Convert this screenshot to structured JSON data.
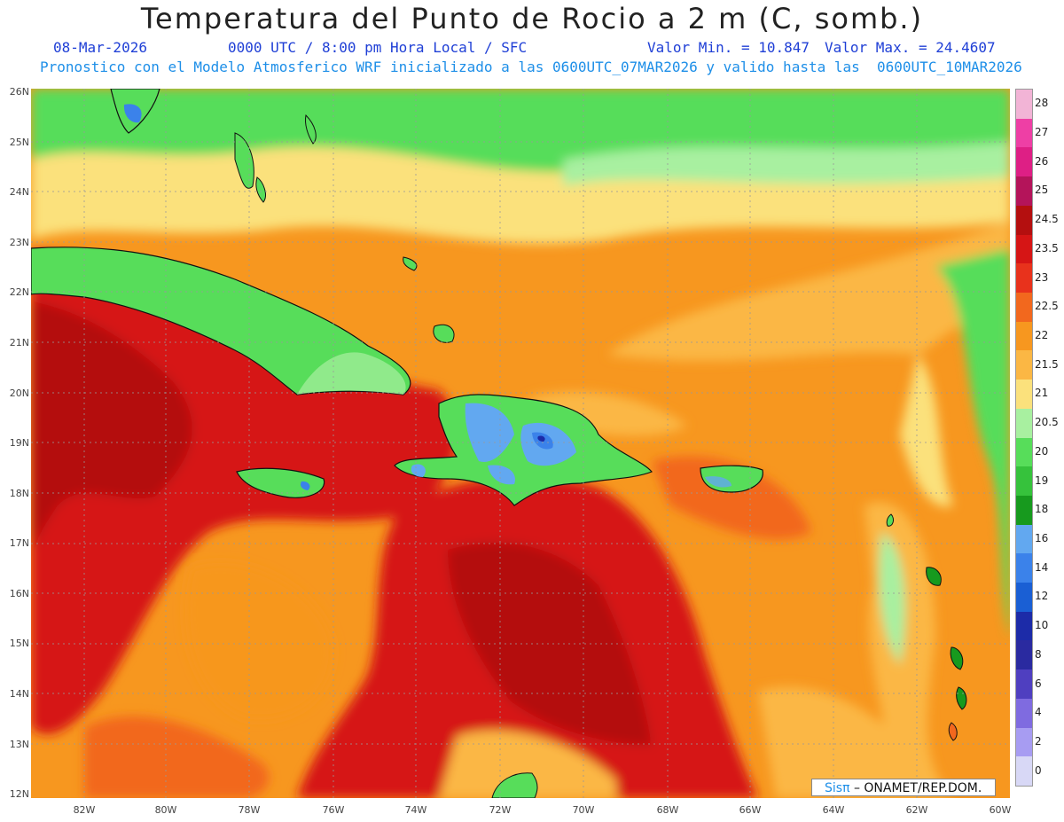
{
  "title": "Temperatura del Punto de Rocio a 2 m (C, somb.)",
  "date": "08-Mar-2026",
  "time_label": "0000 UTC / 8:00 pm Hora Local / SFC",
  "min_label": "Valor Min. = 10.847",
  "max_label": "Valor Max. = 24.4607",
  "model_label": "Pronostico con el Modelo Atmosferico WRF inicializado a las 0600UTC_07MAR2026 y valido hasta las  0600UTC_10MAR2026",
  "lat_labels": [
    "26N",
    "25N",
    "24N",
    "23N",
    "22N",
    "21N",
    "20N",
    "19N",
    "18N",
    "17N",
    "16N",
    "15N",
    "14N",
    "13N",
    "12N"
  ],
  "lon_labels": [
    "82W",
    "80W",
    "78W",
    "76W",
    "74W",
    "72W",
    "70W",
    "68W",
    "66W",
    "64W",
    "62W",
    "60W"
  ],
  "colorbar": {
    "labels": [
      "28",
      "27",
      "26",
      "25",
      "24.5",
      "23.5",
      "23",
      "22.5",
      "22",
      "21.5",
      "21",
      "20.5",
      "20",
      "19",
      "18",
      "16",
      "14",
      "12",
      "10",
      "8",
      "6",
      "4",
      "2",
      "0"
    ],
    "colors": [
      "#f2b4d6",
      "#ee3fa5",
      "#de1f85",
      "#b4145a",
      "#b40f0f",
      "#d61515",
      "#e8321c",
      "#f2681e",
      "#f7971f",
      "#fbb744",
      "#fbe17c",
      "#a8f0a0",
      "#57dd5a",
      "#36c23c",
      "#179a1e",
      "#62a8f0",
      "#3b82ea",
      "#1a5fd4",
      "#1c2ba8",
      "#2a2aa0",
      "#4f3fc0",
      "#7f6be0",
      "#a79cf2",
      "#d8d8f6"
    ]
  },
  "credit": {
    "brand": "Sisπ",
    "text": " – ONAMET/REP.DOM."
  }
}
